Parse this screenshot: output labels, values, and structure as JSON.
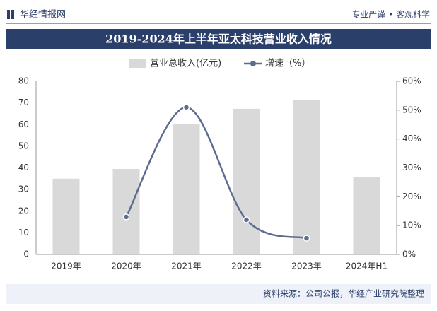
{
  "header": {
    "brand": "华经情报网",
    "slogan": "专业严谨 • 客观科学"
  },
  "chart_data": {
    "type": "bar",
    "title": "2019-2024年上半年亚太科技营业收入情况",
    "categories": [
      "2019年",
      "2020年",
      "2021年",
      "2022年",
      "2023年",
      "2024年H1"
    ],
    "series": [
      {
        "name": "营业总收入(亿元)",
        "type": "bar",
        "color": "#d9d9d9",
        "values": [
          35.0,
          39.5,
          60.1,
          67.3,
          71.2,
          35.6
        ]
      },
      {
        "name": "增速（%）",
        "type": "line",
        "axis": "y2",
        "color": "#5b6c8f",
        "values": [
          null,
          13.0,
          51.0,
          12.0,
          5.6,
          null
        ]
      }
    ],
    "ylim": [
      0,
      80
    ],
    "yticks": [
      0,
      10,
      20,
      30,
      40,
      50,
      60,
      70,
      80
    ],
    "y2lim": [
      0,
      60
    ],
    "y2ticks": [
      {
        "value": 0,
        "label": "0%"
      },
      {
        "value": 10,
        "label": "10%"
      },
      {
        "value": 20,
        "label": "20%"
      },
      {
        "value": 30,
        "label": "30%"
      },
      {
        "value": 40,
        "label": "40%"
      },
      {
        "value": 50,
        "label": "50%"
      },
      {
        "value": 60,
        "label": "60%"
      }
    ],
    "source": "资料来源：公司公报，华经产业研究院整理"
  }
}
